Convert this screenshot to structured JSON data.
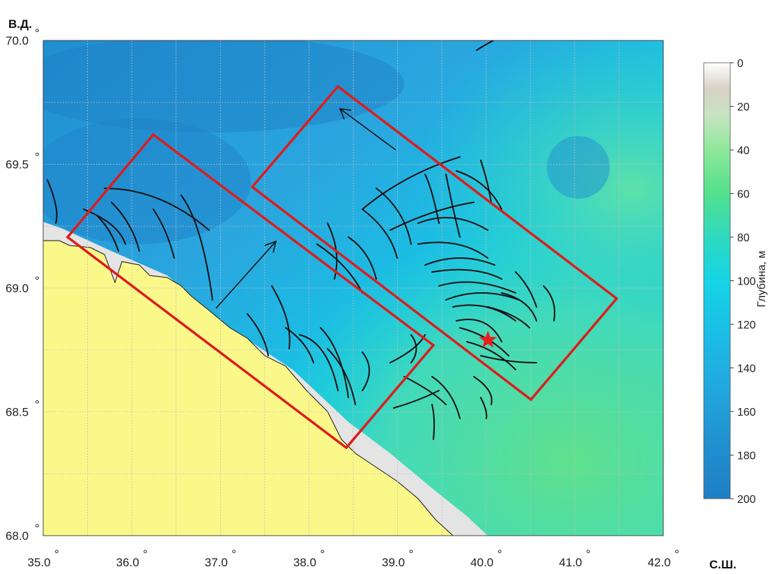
{
  "map": {
    "corner_label_top": "В.Д.",
    "corner_label_bottom": "С.Ш.",
    "lon_ticks": [
      "35.0",
      "36.0",
      "37.0",
      "38.0",
      "39.0",
      "40.0",
      "41.0",
      "42.0"
    ],
    "lat_ticks": [
      "68.0",
      "68.5",
      "69.0",
      "69.5",
      "70.0"
    ],
    "lon_range": [
      35.0,
      42.0
    ],
    "lat_range": [
      68.0,
      70.0
    ],
    "degree_symbol": "°",
    "grid": "on",
    "land_color": "#fbf88a",
    "box_color": "#dd1c1c",
    "track_color": "#111111",
    "marker": {
      "type": "star",
      "color": "#ee1c1c",
      "lon": 40.02,
      "lat": 68.79
    }
  },
  "colorbar": {
    "label": "Глубина, м",
    "ticks": [
      "0",
      "20",
      "40",
      "60",
      "80",
      "100",
      "120",
      "140",
      "160",
      "180",
      "200"
    ],
    "range": [
      0,
      200
    ]
  }
}
